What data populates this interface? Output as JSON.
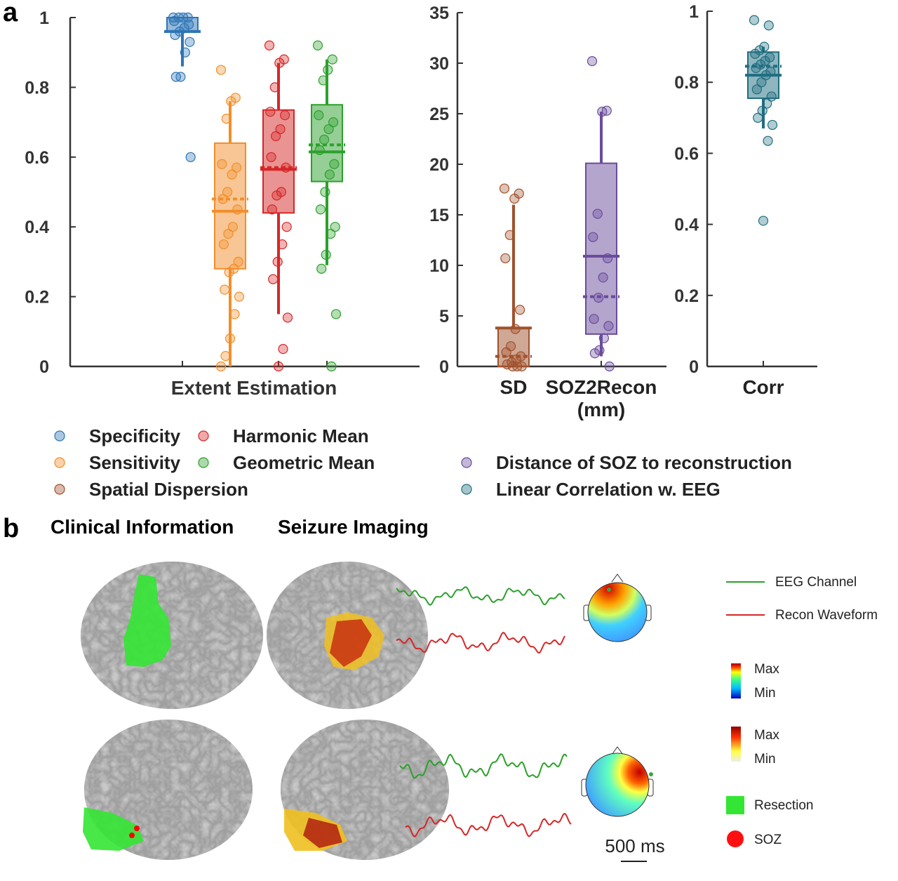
{
  "panel_labels": [
    "a",
    "b"
  ],
  "chart_data": [
    {
      "type": "box",
      "xlabel": "Extent Estimation",
      "ylim": [
        0,
        1
      ],
      "yticks": [
        0,
        0.2,
        0.4,
        0.6,
        0.8,
        1
      ],
      "series": [
        {
          "name": "Specificity",
          "color": "#2e75b6",
          "median": 0.96,
          "mean": 0.96,
          "q1": 0.96,
          "q3": 1,
          "whisker_low": 0.86,
          "whisker_high": 1,
          "points": [
            1,
            1,
            1,
            1,
            0.99,
            0.98,
            0.97,
            0.96,
            0.95,
            0.93,
            0.9,
            0.83,
            0.83,
            0.6
          ]
        },
        {
          "name": "Sensitivity",
          "color": "#f28e2b",
          "median": 0.445,
          "mean": 0.48,
          "q1": 0.28,
          "q3": 0.64,
          "whisker_low": 0,
          "whisker_high": 0.76,
          "points": [
            0.85,
            0.77,
            0.76,
            0.71,
            0.58,
            0.57,
            0.55,
            0.5,
            0.48,
            0.45,
            0.4,
            0.38,
            0.35,
            0.3,
            0.28,
            0.27,
            0.22,
            0.2,
            0.15,
            0.08,
            0.03,
            0
          ]
        },
        {
          "name": "Harmonic Mean",
          "color": "#d62728",
          "median": 0.565,
          "mean": 0.57,
          "q1": 0.44,
          "q3": 0.735,
          "whisker_low": 0.15,
          "whisker_high": 0.87,
          "points": [
            0.92,
            0.88,
            0.87,
            0.8,
            0.73,
            0.72,
            0.68,
            0.66,
            0.6,
            0.57,
            0.5,
            0.49,
            0.45,
            0.4,
            0.35,
            0.3,
            0.25,
            0.14,
            0.05,
            0
          ]
        },
        {
          "name": "Geometric Mean",
          "color": "#2ca02c",
          "median": 0.615,
          "mean": 0.635,
          "q1": 0.53,
          "q3": 0.75,
          "whisker_low": 0.29,
          "whisker_high": 0.88,
          "points": [
            0.92,
            0.88,
            0.85,
            0.82,
            0.72,
            0.7,
            0.68,
            0.65,
            0.62,
            0.58,
            0.55,
            0.5,
            0.45,
            0.4,
            0.38,
            0.32,
            0.28,
            0.15,
            0
          ]
        }
      ]
    },
    {
      "type": "box",
      "categories": [
        "SD",
        "SOZ2Recon (mm)"
      ],
      "ylim": [
        0,
        35
      ],
      "yticks": [
        0,
        5,
        10,
        15,
        20,
        25,
        30,
        35
      ],
      "series": [
        {
          "name": "Spatial Dispersion",
          "color": "#a0522d",
          "median": 3.8,
          "mean": 1.0,
          "q1": 0,
          "q3": 3.8,
          "whisker_low": 0,
          "whisker_high": 16,
          "points": [
            17.6,
            17.1,
            16.6,
            13,
            10.7,
            5.6,
            3.7,
            2,
            1.4,
            1,
            0.7,
            0.4,
            0.2,
            0,
            0,
            0
          ]
        },
        {
          "name": "Distance of SOZ to reconstruction",
          "color": "#6a4c9c",
          "median": 10.9,
          "mean": 6.9,
          "q1": 3.2,
          "q3": 20.1,
          "whisker_low": 1,
          "whisker_high": 25.2,
          "points": [
            30.2,
            25.3,
            25.2,
            15.1,
            12.8,
            10.7,
            8.8,
            6.8,
            4.7,
            4,
            2.8,
            1.6,
            1.3,
            0
          ]
        }
      ]
    },
    {
      "type": "box",
      "categories": [
        "Corr"
      ],
      "ylim": [
        0,
        1
      ],
      "yticks": [
        0,
        0.2,
        0.4,
        0.6,
        0.8,
        1
      ],
      "series": [
        {
          "name": "Linear Correlation w. EEG",
          "color": "#1f6e80",
          "median": 0.82,
          "mean": 0.845,
          "q1": 0.755,
          "q3": 0.885,
          "whisker_low": 0.67,
          "whisker_high": 0.9,
          "points": [
            0.975,
            0.96,
            0.9,
            0.89,
            0.88,
            0.87,
            0.86,
            0.85,
            0.84,
            0.83,
            0.82,
            0.8,
            0.78,
            0.76,
            0.74,
            0.72,
            0.7,
            0.68,
            0.635,
            0.41
          ]
        }
      ]
    }
  ],
  "panel_b": {
    "titles": [
      "Clinical Information",
      "Seizure Imaging"
    ],
    "legend": [
      "EEG Channel",
      "Recon Waveform",
      "Max",
      "Min",
      "Max",
      "Min",
      "Resection",
      "SOZ"
    ],
    "scale_bar": "500 ms"
  }
}
